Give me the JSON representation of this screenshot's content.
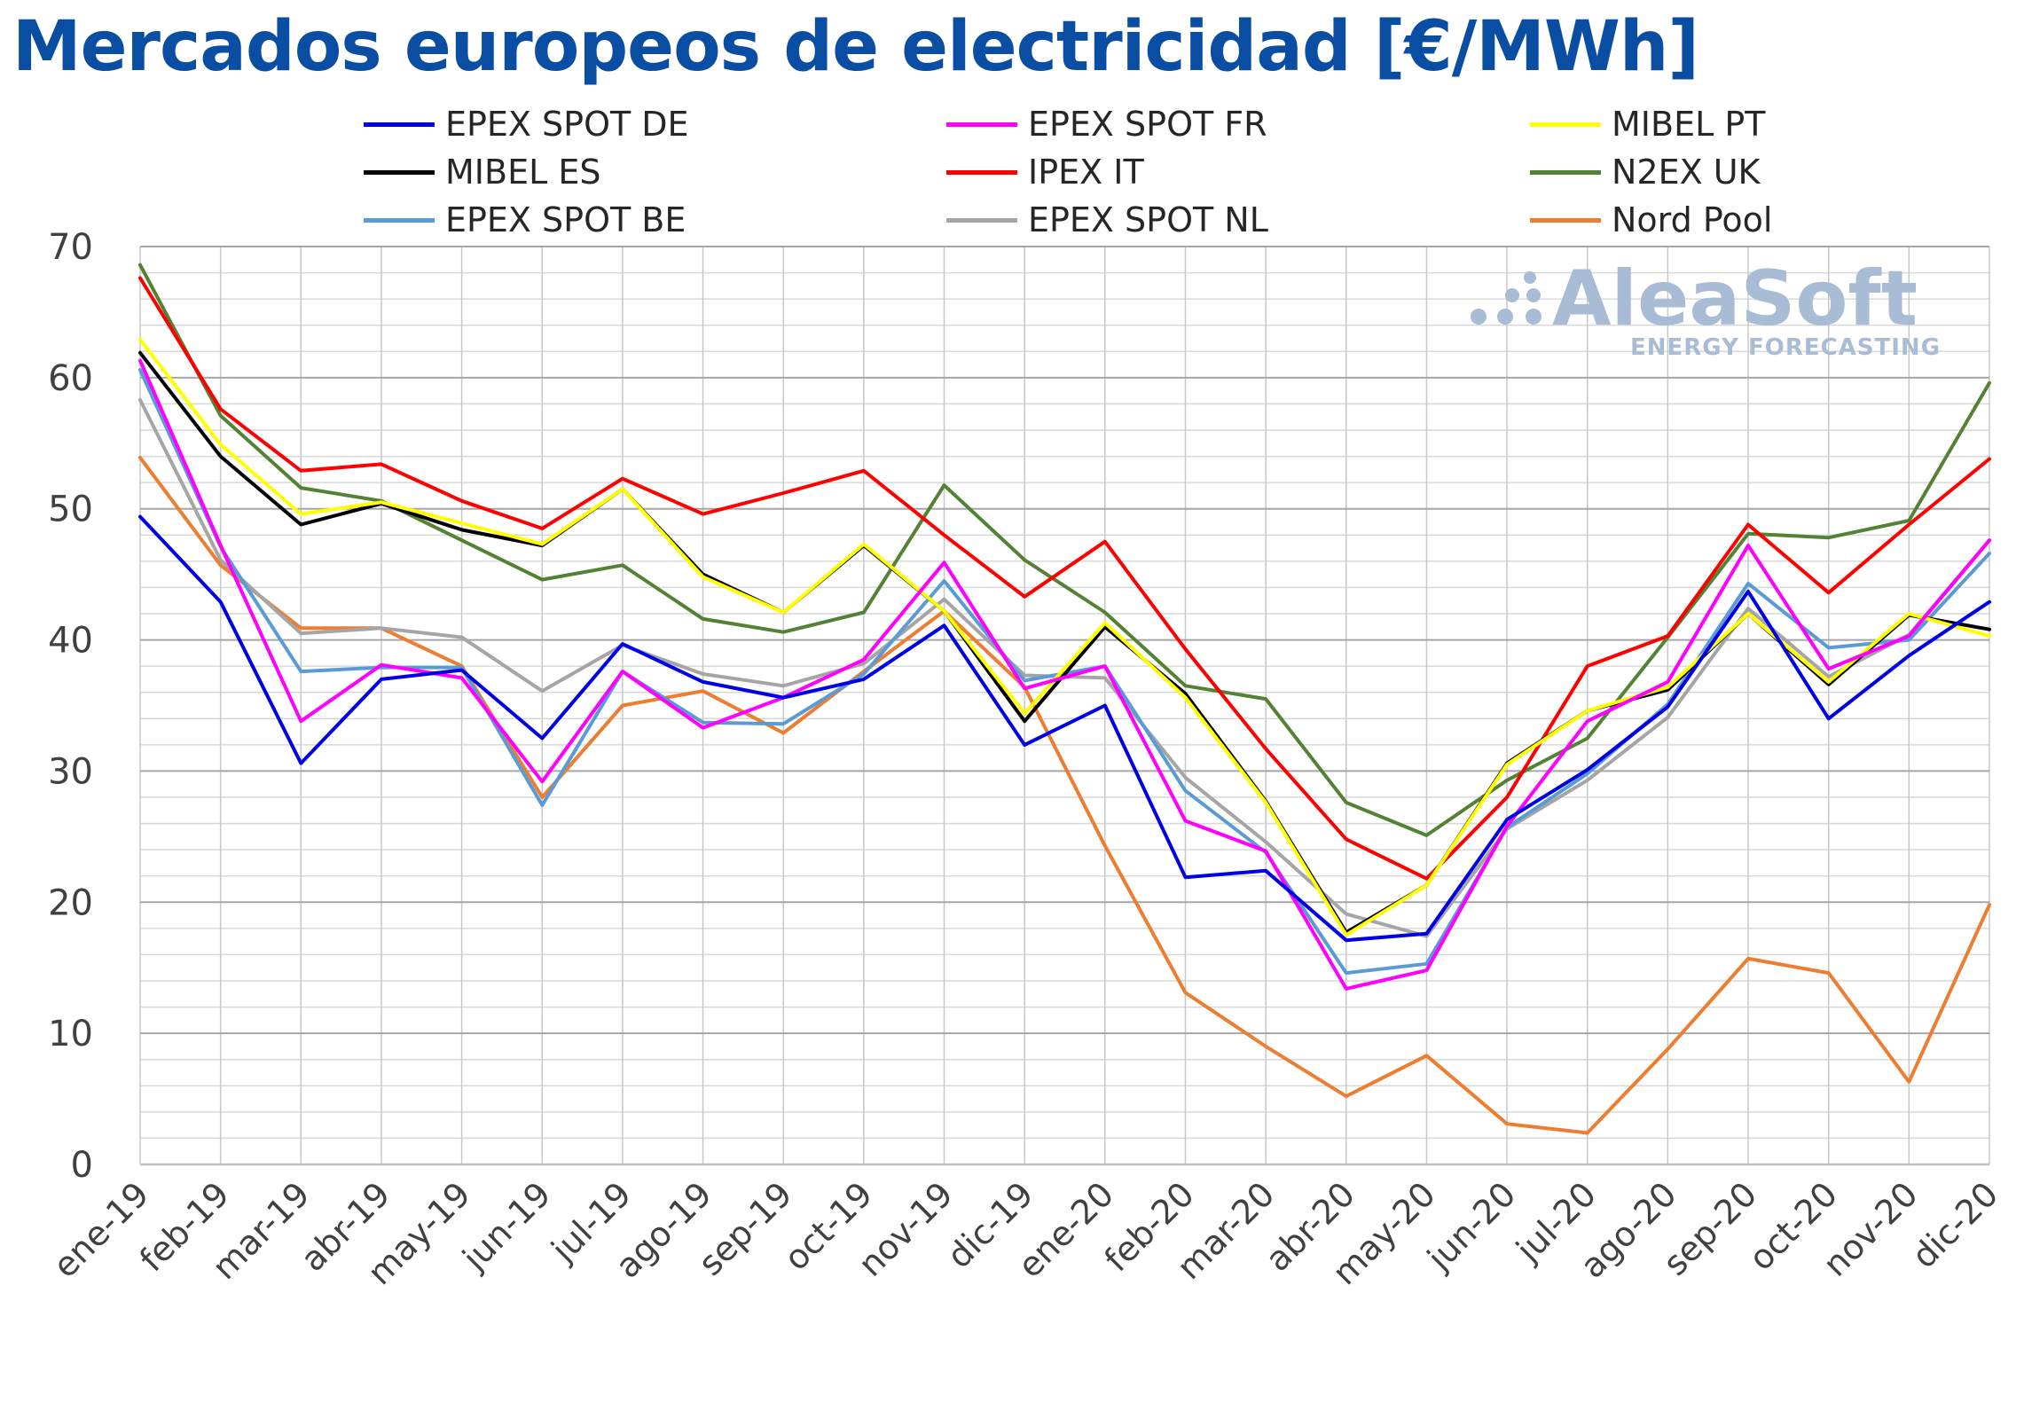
{
  "title": "Mercados europeos de electricidad [€/MWh]",
  "watermark": {
    "name": "AleaSoft",
    "subtitle": "ENERGY FORECASTING"
  },
  "chart_data": {
    "type": "line",
    "title": "Mercados europeos de electricidad [€/MWh]",
    "xlabel": "",
    "ylabel": "",
    "ylim": [
      0,
      70
    ],
    "yticks": [
      0,
      10,
      20,
      30,
      40,
      50,
      60,
      70
    ],
    "grid": true,
    "legend_position": "top",
    "categories": [
      "ene-19",
      "feb-19",
      "mar-19",
      "abr-19",
      "may-19",
      "jun-19",
      "jul-19",
      "ago-19",
      "sep-19",
      "oct-19",
      "nov-19",
      "dic-19",
      "ene-20",
      "feb-20",
      "mar-20",
      "abr-20",
      "may-20",
      "jun-20",
      "jul-20",
      "ago-20",
      "sep-20",
      "oct-20",
      "nov-20",
      "dic-20"
    ],
    "series": [
      {
        "name": "EPEX SPOT DE",
        "color": "#0000e6",
        "values": [
          49.4,
          42.9,
          30.6,
          37.0,
          37.7,
          32.5,
          39.7,
          36.8,
          35.6,
          37.0,
          41.1,
          32.0,
          35.0,
          21.9,
          22.4,
          17.1,
          17.6,
          26.3,
          30.1,
          34.9,
          43.7,
          34.0,
          38.8,
          42.9
        ]
      },
      {
        "name": "EPEX SPOT FR",
        "color": "#ff00ff",
        "values": [
          61.3,
          47.2,
          33.8,
          38.1,
          37.1,
          29.2,
          37.6,
          33.3,
          35.6,
          38.5,
          45.9,
          36.3,
          38.0,
          26.2,
          23.9,
          13.4,
          14.8,
          25.8,
          33.8,
          36.8,
          47.2,
          37.8,
          40.3,
          47.6
        ]
      },
      {
        "name": "MIBEL PT",
        "color": "#ffff00",
        "values": [
          62.9,
          54.9,
          49.6,
          50.5,
          48.9,
          47.3,
          51.5,
          44.8,
          42.1,
          47.3,
          42.2,
          34.4,
          41.3,
          35.6,
          27.6,
          17.5,
          21.3,
          30.5,
          34.6,
          36.4,
          42.0,
          36.8,
          42.0,
          40.3
        ]
      },
      {
        "name": "MIBEL ES",
        "color": "#000000",
        "values": [
          61.9,
          54.0,
          48.8,
          50.4,
          48.4,
          47.2,
          51.5,
          45.0,
          42.1,
          47.2,
          42.2,
          33.8,
          41.0,
          35.9,
          27.7,
          17.7,
          21.3,
          30.6,
          34.6,
          36.2,
          42.0,
          36.6,
          41.9,
          40.8
        ]
      },
      {
        "name": "IPEX IT",
        "color": "#ff0000",
        "values": [
          67.6,
          57.6,
          52.9,
          53.4,
          50.6,
          48.5,
          52.3,
          49.6,
          51.2,
          52.9,
          48.0,
          43.3,
          47.5,
          39.3,
          31.7,
          24.8,
          21.8,
          28.0,
          38.0,
          40.3,
          48.8,
          43.6,
          48.8,
          53.8
        ]
      },
      {
        "name": "N2EX UK",
        "color": "#548235",
        "values": [
          68.6,
          57.1,
          51.6,
          50.6,
          47.6,
          44.6,
          45.7,
          41.6,
          40.6,
          42.1,
          51.8,
          46.1,
          42.1,
          36.5,
          35.5,
          27.6,
          25.1,
          29.3,
          32.5,
          40.2,
          48.1,
          47.8,
          49.1,
          59.6
        ]
      },
      {
        "name": "EPEX SPOT BE",
        "color": "#5b9bd5",
        "values": [
          60.6,
          47.1,
          37.6,
          37.9,
          37.9,
          27.4,
          37.6,
          33.7,
          33.6,
          37.4,
          44.5,
          36.9,
          38.0,
          28.5,
          23.8,
          14.6,
          15.3,
          25.7,
          29.8,
          35.1,
          44.3,
          39.4,
          40.0,
          46.6
        ]
      },
      {
        "name": "EPEX SPOT NL",
        "color": "#a5a5a5",
        "values": [
          58.3,
          46.1,
          40.5,
          40.9,
          40.2,
          36.1,
          39.6,
          37.4,
          36.5,
          38.2,
          43.1,
          37.3,
          37.1,
          29.5,
          24.6,
          19.1,
          17.4,
          25.6,
          29.3,
          34.1,
          42.4,
          37.2,
          40.4,
          47.6
        ]
      },
      {
        "name": "Nord Pool",
        "color": "#ed7d31",
        "values": [
          53.9,
          45.7,
          40.9,
          40.9,
          38.0,
          28.0,
          35.0,
          36.1,
          32.9,
          37.6,
          42.2,
          36.4,
          24.3,
          13.1,
          9.0,
          5.2,
          8.3,
          3.1,
          2.4,
          8.8,
          15.7,
          14.6,
          6.3,
          19.8
        ]
      }
    ]
  }
}
